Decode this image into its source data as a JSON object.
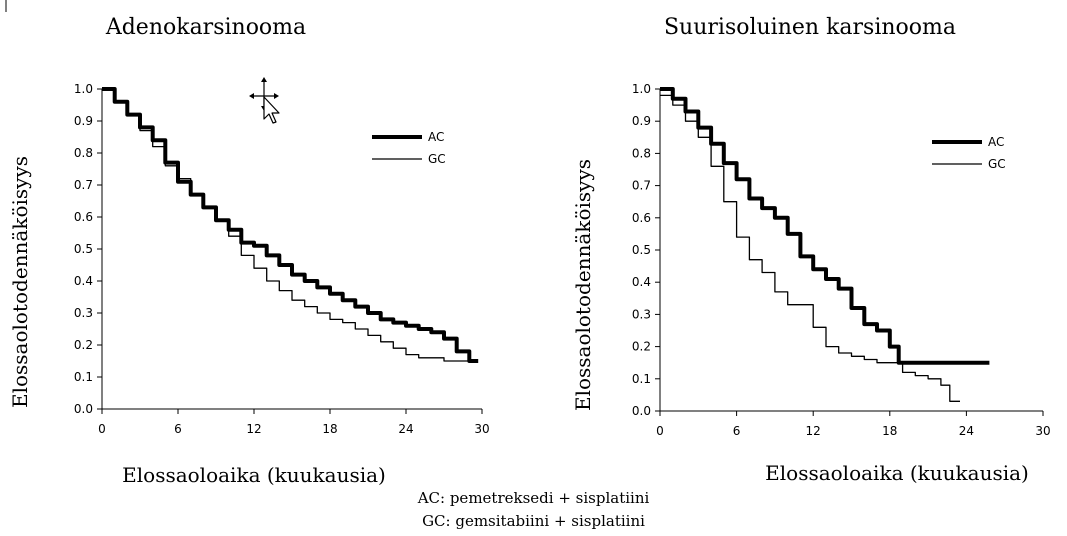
{
  "chart_data": [
    {
      "type": "line",
      "title": "Adenokarsinooma",
      "xlabel": "Elossaoloaika (kuukausia)",
      "ylabel": "Elossaolotodennäköisyys",
      "xlim": [
        0,
        30
      ],
      "ylim": [
        0,
        1
      ],
      "xticks": [
        "0",
        "6",
        "12",
        "18",
        "24",
        "30"
      ],
      "yticks": [
        "0.0",
        "0.1",
        "0.2",
        "0.3",
        "0.4",
        "0.5",
        "0.6",
        "0.7",
        "0.8",
        "0.9",
        "1.0"
      ],
      "legend_position": "top-right",
      "grid": false,
      "series": [
        {
          "name": "AC",
          "style": "thick",
          "x": [
            0,
            1,
            2,
            3,
            4,
            5,
            6,
            7,
            8,
            9,
            10,
            11,
            12,
            13,
            14,
            15,
            16,
            17,
            18,
            19,
            20,
            21,
            22,
            23,
            24,
            25,
            26,
            27,
            28,
            29,
            29.7
          ],
          "y": [
            1.0,
            0.96,
            0.92,
            0.88,
            0.84,
            0.77,
            0.71,
            0.67,
            0.63,
            0.59,
            0.56,
            0.52,
            0.51,
            0.48,
            0.45,
            0.42,
            0.4,
            0.38,
            0.36,
            0.34,
            0.32,
            0.3,
            0.28,
            0.27,
            0.26,
            0.25,
            0.24,
            0.22,
            0.18,
            0.15,
            0.15
          ]
        },
        {
          "name": "GC",
          "style": "thin",
          "x": [
            0,
            1,
            2,
            3,
            4,
            5,
            6,
            7,
            8,
            9,
            10,
            11,
            12,
            13,
            14,
            15,
            16,
            17,
            18,
            19,
            20,
            21,
            22,
            23,
            24,
            25,
            26,
            27,
            28,
            29.5
          ],
          "y": [
            1.0,
            0.96,
            0.92,
            0.87,
            0.82,
            0.76,
            0.72,
            0.67,
            0.63,
            0.59,
            0.54,
            0.48,
            0.44,
            0.4,
            0.37,
            0.34,
            0.32,
            0.3,
            0.28,
            0.27,
            0.25,
            0.23,
            0.21,
            0.19,
            0.17,
            0.16,
            0.16,
            0.15,
            0.15,
            0.15
          ]
        }
      ]
    },
    {
      "type": "line",
      "title": "Suurisoluinen karsinooma",
      "xlabel": "Elossaoloaika (kuukausia)",
      "ylabel": "Elossaolotodennäköisyys",
      "xlim": [
        0,
        30
      ],
      "ylim": [
        0,
        1
      ],
      "xticks": [
        "0",
        "6",
        "12",
        "18",
        "24",
        "30"
      ],
      "yticks": [
        "0.0",
        "0.1",
        "0.2",
        "0.3",
        "0.4",
        "0.5",
        "0.6",
        "0.7",
        "0.8",
        "0.9",
        "1.0"
      ],
      "legend_position": "top-right",
      "grid": false,
      "series": [
        {
          "name": "AC",
          "style": "thick",
          "x": [
            0,
            0.5,
            1,
            2,
            3,
            4,
            5,
            6,
            7,
            8,
            9,
            10,
            11,
            12,
            13,
            14,
            15,
            16,
            17,
            18,
            18.7,
            20,
            22,
            24,
            25.8
          ],
          "y": [
            1.0,
            1.0,
            0.97,
            0.93,
            0.88,
            0.83,
            0.77,
            0.72,
            0.66,
            0.63,
            0.6,
            0.55,
            0.48,
            0.44,
            0.41,
            0.38,
            0.32,
            0.27,
            0.25,
            0.2,
            0.15,
            0.15,
            0.15,
            0.15,
            0.15
          ]
        },
        {
          "name": "GC",
          "style": "thin",
          "x": [
            0,
            1,
            2,
            3,
            4,
            5,
            6,
            7,
            8,
            9,
            10,
            11,
            12,
            13,
            14,
            15,
            16,
            17,
            18,
            19,
            20,
            21,
            22,
            22.7,
            23.5
          ],
          "y": [
            0.98,
            0.95,
            0.9,
            0.85,
            0.76,
            0.65,
            0.54,
            0.47,
            0.43,
            0.37,
            0.33,
            0.33,
            0.26,
            0.2,
            0.18,
            0.17,
            0.16,
            0.15,
            0.15,
            0.12,
            0.11,
            0.1,
            0.08,
            0.03,
            0.03
          ]
        }
      ]
    }
  ],
  "footnote": {
    "line1": "AC: pemetreksedi + sisplatiini",
    "line2": "GC: gemsitabiini + sisplatiini"
  }
}
